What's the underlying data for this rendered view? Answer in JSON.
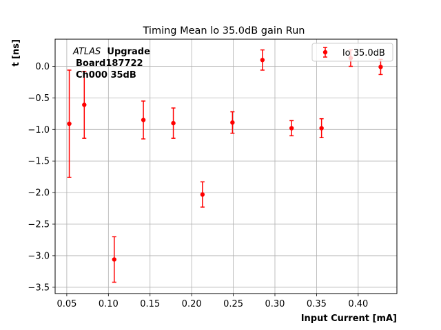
{
  "chart_data": {
    "type": "scatter",
    "title": "Timing Mean lo 35.0dB gain Run",
    "xlabel": "Input Current [mA]",
    "ylabel": "t [ns]",
    "xlim": [
      0.036,
      0.4465
    ],
    "ylim": [
      -3.6,
      0.43
    ],
    "xticks": [
      0.05,
      0.1,
      0.15,
      0.2,
      0.25,
      0.3,
      0.35,
      0.4
    ],
    "xtick_labels": [
      "0.05",
      "0.10",
      "0.15",
      "0.20",
      "0.25",
      "0.30",
      "0.35",
      "0.40"
    ],
    "yticks": [
      -3.5,
      -3.0,
      -2.5,
      -2.0,
      -1.5,
      -1.0,
      -0.5,
      0.0
    ],
    "ytick_labels": [
      "−3.5",
      "−3.0",
      "−2.5",
      "−2.0",
      "−1.5",
      "−1.0",
      "−0.5",
      "0.0"
    ],
    "grid": true,
    "legend_position": "top-right",
    "color": "#ff0000",
    "annotation": {
      "italic": "ATLAS",
      "bold_1": "Upgrade",
      "line2": "Board187722",
      "line3": "Ch000 35dB"
    },
    "series": [
      {
        "name": "lo 35.0dB",
        "x": [
          0.053,
          0.071,
          0.107,
          0.142,
          0.178,
          0.213,
          0.249,
          0.285,
          0.32,
          0.356,
          0.391,
          0.427
        ],
        "y": [
          -0.91,
          -0.61,
          -3.06,
          -0.85,
          -0.9,
          -2.03,
          -0.89,
          0.1,
          -0.98,
          -0.98,
          0.13,
          -0.01
        ],
        "yerr": [
          0.85,
          0.53,
          0.36,
          0.3,
          0.24,
          0.2,
          0.17,
          0.16,
          0.12,
          0.15,
          0.13,
          0.12
        ]
      }
    ]
  }
}
